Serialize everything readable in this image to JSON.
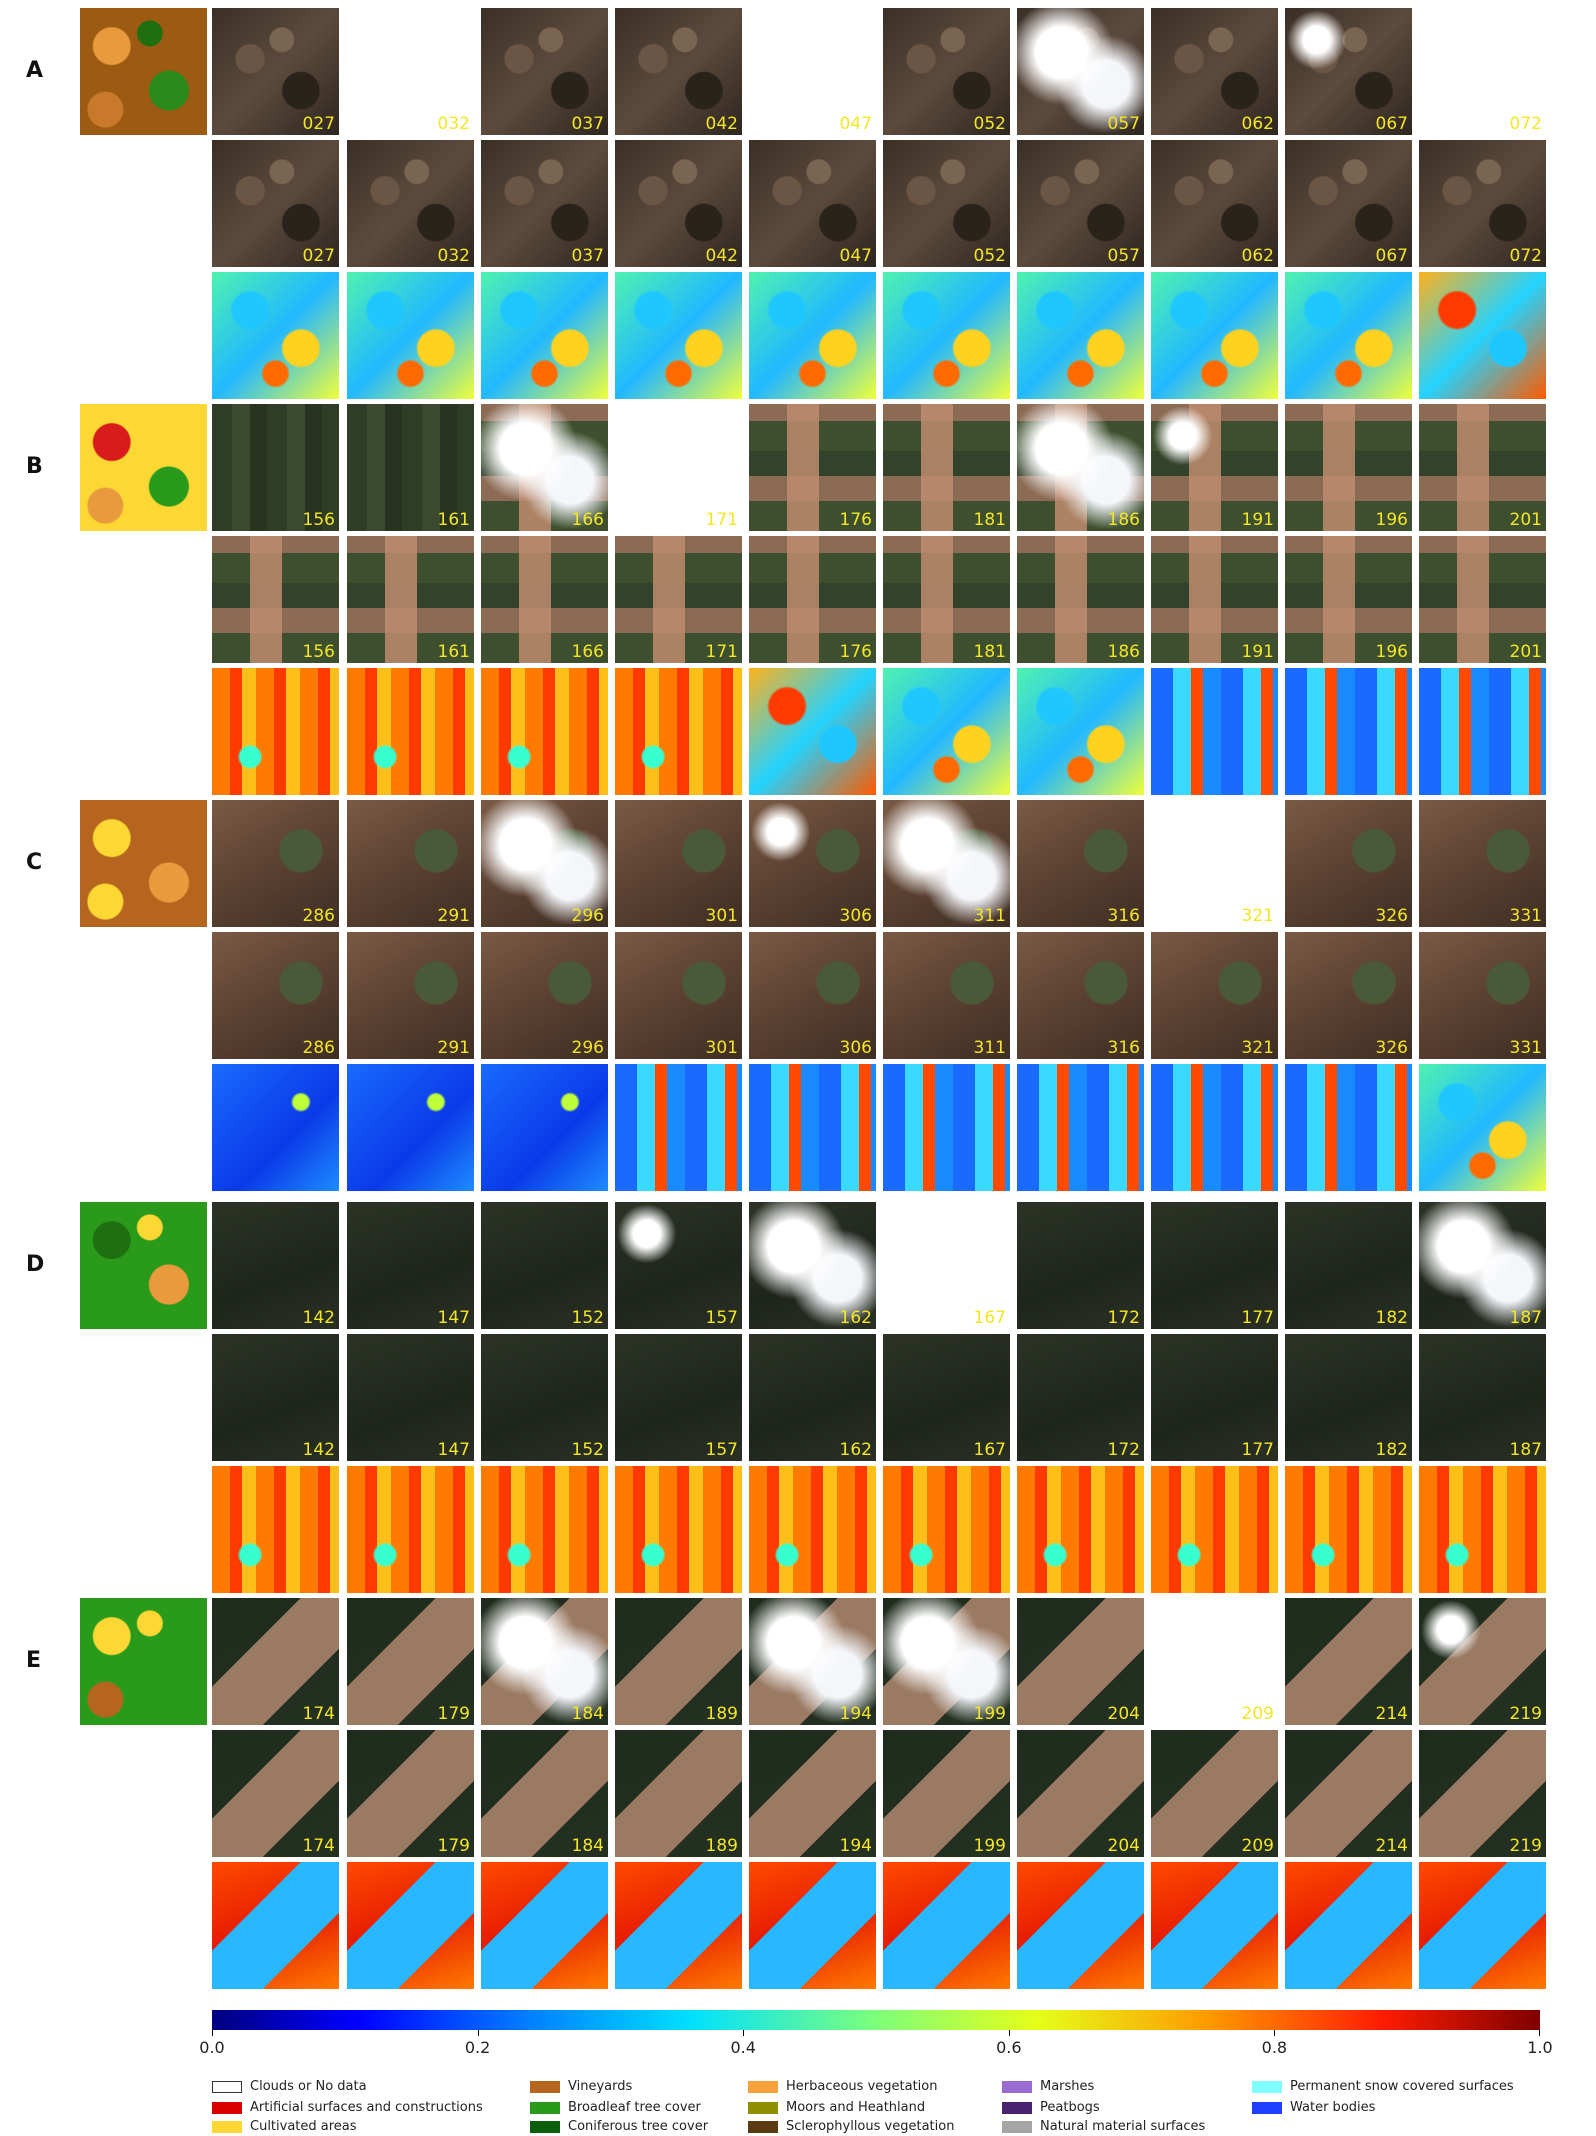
{
  "sections": [
    {
      "label": "A",
      "lc_colors": [
        "#9c5a12",
        "#e89a3c",
        "#2a8a1a",
        "#1f6e10",
        "#c87a2a"
      ],
      "s2_days": [
        "027",
        "032",
        "037",
        "042",
        "047",
        "052",
        "057",
        "062",
        "067",
        "072"
      ],
      "recon_days": [
        "027",
        "032",
        "037",
        "042",
        "047",
        "052",
        "057",
        "062",
        "067",
        "072"
      ],
      "s2_states": [
        "soil",
        "white",
        "soil",
        "soil",
        "white",
        "soil",
        "cloudy",
        "soil",
        "soilcloud",
        "white"
      ],
      "recon_style": "soil",
      "ndvi": [
        "mixed",
        "mixed",
        "mixed",
        "mixed",
        "mixed",
        "mixed",
        "mixed",
        "mixed",
        "mixed",
        "mixedwarm"
      ]
    },
    {
      "label": "B",
      "lc_colors": [
        "#fdd835",
        "#d81b1b",
        "#2a9a1a",
        "#fdd835",
        "#e89a3c"
      ],
      "s2_days": [
        "156",
        "161",
        "166",
        "171",
        "176",
        "181",
        "186",
        "191",
        "196",
        "201"
      ],
      "recon_days": [
        "156",
        "161",
        "166",
        "171",
        "176",
        "181",
        "186",
        "191",
        "196",
        "201"
      ],
      "s2_states": [
        "green",
        "green",
        "cloudy",
        "white",
        "field",
        "field",
        "cloudy",
        "fieldcloud",
        "field",
        "field"
      ],
      "recon_style": "field",
      "ndvi": [
        "hot",
        "hot",
        "hot",
        "hot",
        "mixedwarm",
        "mixed",
        "mixed",
        "cool",
        "cool",
        "cool"
      ]
    },
    {
      "label": "C",
      "lc_colors": [
        "#b5651d",
        "#fdd835",
        "#e89a3c",
        "#b5651d",
        "#fdd835"
      ],
      "s2_days": [
        "286",
        "291",
        "296",
        "301",
        "306",
        "311",
        "316",
        "321",
        "326",
        "331"
      ],
      "recon_days": [
        "286",
        "291",
        "296",
        "301",
        "306",
        "311",
        "316",
        "321",
        "326",
        "331"
      ],
      "s2_states": [
        "brown",
        "brown",
        "cloudy",
        "brown",
        "browncloud",
        "cloudy",
        "brown",
        "white",
        "brown",
        "brown"
      ],
      "recon_style": "brown",
      "ndvi": [
        "blue",
        "blue",
        "blue",
        "cool",
        "cool",
        "cool",
        "cool",
        "cool",
        "cool",
        "mixed"
      ]
    },
    {
      "label": "D",
      "lc_colors": [
        "#2a9a1a",
        "#1f6e10",
        "#e89a3c",
        "#fdd835",
        "#2a9a1a"
      ],
      "s2_days": [
        "142",
        "147",
        "152",
        "157",
        "162",
        "167",
        "172",
        "177",
        "182",
        "187"
      ],
      "recon_days": [
        "142",
        "147",
        "152",
        "157",
        "162",
        "167",
        "172",
        "177",
        "182",
        "187"
      ],
      "s2_states": [
        "dark",
        "dark",
        "dark",
        "darkcloud",
        "cloudy",
        "white",
        "dark",
        "dark",
        "dark",
        "cloudy"
      ],
      "recon_style": "dark",
      "ndvi": [
        "hot",
        "hot",
        "hot",
        "hot",
        "hot",
        "hot",
        "hot",
        "hot",
        "hot",
        "hot"
      ]
    },
    {
      "label": "E",
      "lc_colors": [
        "#2a9a1a",
        "#fdd835",
        "#2a9a1a",
        "#fdd835",
        "#b5651d"
      ],
      "s2_days": [
        "174",
        "179",
        "184",
        "189",
        "194",
        "199",
        "204",
        "209",
        "214",
        "219"
      ],
      "recon_days": [
        "174",
        "179",
        "184",
        "189",
        "194",
        "199",
        "204",
        "209",
        "214",
        "219"
      ],
      "s2_states": [
        "darkfield",
        "darkfield",
        "cloudy",
        "darkfield",
        "cloudy",
        "cloudy",
        "darkfield",
        "white",
        "darkfield",
        "whitecloud"
      ],
      "recon_style": "darkfield",
      "ndvi": [
        "redblue",
        "redblue",
        "redblue",
        "redblue",
        "redblue",
        "redblue",
        "redblue",
        "redblue",
        "redblue",
        "redblue"
      ]
    }
  ],
  "colorbar": {
    "ticks": [
      "0.0",
      "0.2",
      "0.4",
      "0.6",
      "0.8",
      "1.0"
    ],
    "tick_values": [
      0.0,
      0.2,
      0.4,
      0.6,
      0.8,
      1.0
    ],
    "colormap": "jet"
  },
  "legend": [
    {
      "label": "Clouds or No data",
      "color": "#ffffff"
    },
    {
      "label": "Artificial surfaces and constructions",
      "color": "#d90000"
    },
    {
      "label": "Cultivated areas",
      "color": "#fdd835"
    },
    {
      "label": "Vineyards",
      "color": "#b5651d"
    },
    {
      "label": "Broadleaf tree cover",
      "color": "#2a9a1a"
    },
    {
      "label": "Coniferous tree cover",
      "color": "#0b5e0b"
    },
    {
      "label": "Herbaceous vegetation",
      "color": "#f7a13a"
    },
    {
      "label": "Moors and Heathland",
      "color": "#8f8f00"
    },
    {
      "label": "Sclerophyllous vegetation",
      "color": "#5a3a10"
    },
    {
      "label": "Marshes",
      "color": "#9a6bd1"
    },
    {
      "label": "Peatbogs",
      "color": "#4a2370"
    },
    {
      "label": "Natural material surfaces",
      "color": "#a5a5a5"
    },
    {
      "label": "Permanent snow covered surfaces",
      "color": "#80ffff"
    },
    {
      "label": "Water bodies",
      "color": "#1f3fff"
    }
  ]
}
